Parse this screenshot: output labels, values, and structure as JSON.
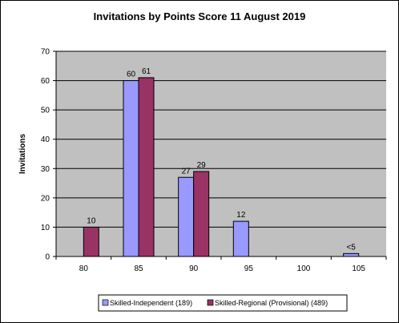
{
  "chart_data": {
    "type": "bar",
    "title": "Invitations by Points Score 11 August 2019",
    "xlabel": "",
    "ylabel": "Invitations",
    "ylim": [
      0,
      70
    ],
    "yticks": [
      0,
      10,
      20,
      30,
      40,
      50,
      60,
      70
    ],
    "grid": true,
    "legend_position": "bottom",
    "categories": [
      "80",
      "85",
      "90",
      "95",
      "100",
      "105"
    ],
    "series": [
      {
        "name": "Skilled-Independent (189)",
        "color": "#9999ff",
        "values": [
          0,
          60,
          27,
          12,
          0,
          1
        ],
        "labels": [
          "",
          "60",
          "27",
          "12",
          "",
          "<5"
        ]
      },
      {
        "name": "Skilled-Regional (Provisional) (489)",
        "color": "#993366",
        "values": [
          10,
          61,
          29,
          0,
          0,
          0
        ],
        "labels": [
          "10",
          "61",
          "29",
          "",
          "",
          ""
        ]
      }
    ],
    "plot_background": "#c0c0c0"
  }
}
